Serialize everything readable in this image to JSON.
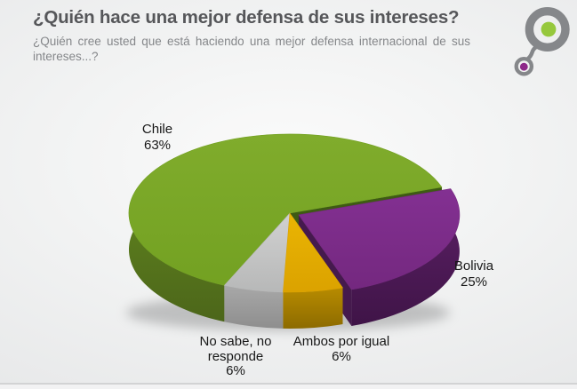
{
  "header": {
    "title": "¿Quién hace una mejor defensa de sus intereses?",
    "subtitle": "¿Quién cree usted que está haciendo una mejor defensa internacional de sus intereses...?"
  },
  "logo": {
    "ring_color": "#85878a",
    "big_dot_color": "#96c83c",
    "small_dot_color": "#8e2889"
  },
  "chart_data": {
    "type": "pie",
    "title": "",
    "legend": "none",
    "style": "3d-exploded",
    "start_angle": 204,
    "categories": [
      "Chile",
      "Bolivia",
      "Ambos por igual",
      "No sabe, no responde"
    ],
    "values": [
      63,
      25,
      6,
      6
    ],
    "slices": [
      {
        "label": "Chile",
        "value": 63,
        "pct_label": "63%",
        "exploded": false,
        "top": [
          "#80ac2c",
          "#73a122"
        ],
        "wall": [
          "#68901f",
          "#4c661a"
        ],
        "edge": "#3e5a14"
      },
      {
        "label": "Bolivia",
        "value": 25,
        "pct_label": "25%",
        "exploded": true,
        "top": [
          "#833092",
          "#74287f"
        ],
        "wall": [
          "#5e2168",
          "#3f1447"
        ],
        "edge": "#451a4d"
      },
      {
        "label": "Ambos por igual",
        "value": 6,
        "pct_label": "6%",
        "exploded": false,
        "top": [
          "#eab503",
          "#dba200"
        ],
        "wall": [
          "#b78b00",
          "#8d6b00"
        ],
        "edge": "#8a6900"
      },
      {
        "label": "No sabe, no responde",
        "value": 6,
        "pct_label": "6%",
        "exploded": false,
        "top": [
          "#d1d1d1",
          "#b7b8b8"
        ],
        "wall": [
          "#a8a8a8",
          "#8e8e8e"
        ],
        "edge": "#8a8a8a"
      }
    ]
  }
}
